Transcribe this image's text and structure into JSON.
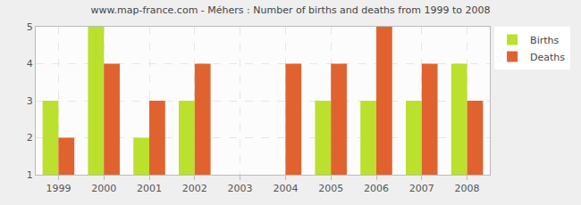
{
  "chart_data": {
    "type": "bar",
    "title": "www.map-france.com - Méhers : Number of births and deaths from 1999 to 2008",
    "categories": [
      "1999",
      "2000",
      "2001",
      "2002",
      "2003",
      "2004",
      "2005",
      "2006",
      "2007",
      "2008"
    ],
    "series": [
      {
        "name": "Births",
        "color": "#bbe02e",
        "values": [
          3,
          5,
          2,
          3,
          1,
          1,
          3,
          3,
          3,
          4
        ]
      },
      {
        "name": "Deaths",
        "color": "#e0632f",
        "values": [
          2,
          4,
          3,
          4,
          1,
          4,
          4,
          5,
          4,
          3
        ]
      }
    ],
    "ylim": [
      1,
      5
    ],
    "yticks": [
      1,
      2,
      3,
      4,
      5
    ],
    "grid": true,
    "legend": "top right"
  }
}
